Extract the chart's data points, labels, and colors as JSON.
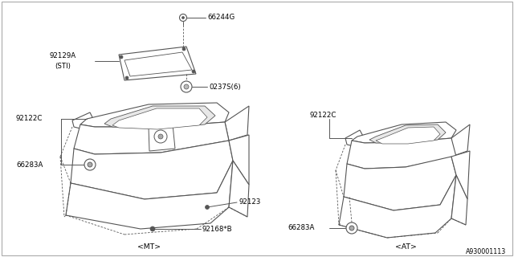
{
  "background_color": "#ffffff",
  "line_color": "#555555",
  "text_color": "#000000",
  "figure_width": 6.4,
  "figure_height": 3.2,
  "dpi": 100,
  "fs": 6.2,
  "ref_number": "A930001113",
  "mt_label": "<MT>",
  "at_label": "<AT>"
}
